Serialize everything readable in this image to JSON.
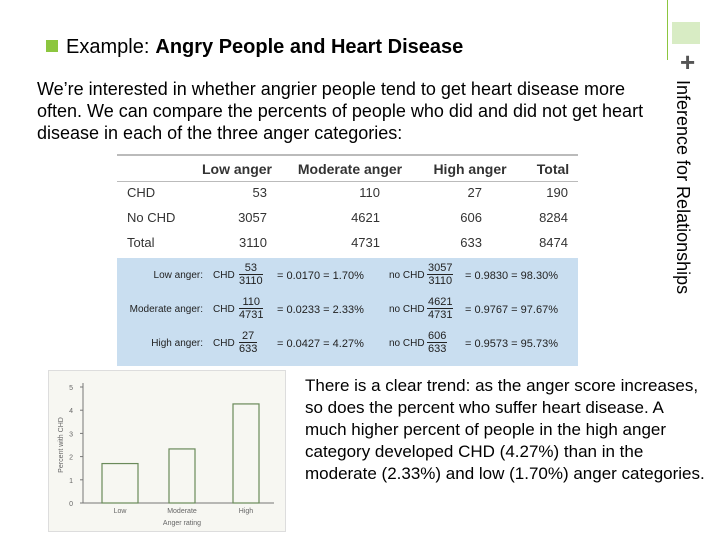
{
  "header": {
    "prefix": "Example:",
    "title": "Angry People and Heart Disease"
  },
  "corner": "+",
  "side_title": "Inference for Relationships",
  "intro": "We’re interested in whether angrier people tend to get heart disease more often. We can compare the percents of people who did and did not get heart disease in each of the three anger categories:",
  "table": {
    "columns": [
      "Low anger",
      "Moderate anger",
      "High anger",
      "Total"
    ],
    "rows": [
      {
        "label": "CHD",
        "values": [
          53,
          110,
          27,
          190
        ]
      },
      {
        "label": "No CHD",
        "values": [
          3057,
          4621,
          606,
          8284
        ]
      },
      {
        "label": "Total",
        "values": [
          3110,
          4731,
          633,
          8474
        ]
      }
    ]
  },
  "proportions": [
    {
      "label": "Low anger:",
      "chd": {
        "label": "CHD",
        "num": "53",
        "den": "3110",
        "result": "= 0.0170 = 1.70%"
      },
      "no_chd": {
        "label": "no CHD",
        "num": "3057",
        "den": "3110",
        "result": "= 0.9830 = 98.30%"
      }
    },
    {
      "label": "Moderate anger:",
      "chd": {
        "label": "CHD",
        "num": "110",
        "den": "4731",
        "result": "= 0.0233 = 2.33%"
      },
      "no_chd": {
        "label": "no CHD",
        "num": "4621",
        "den": "4731",
        "result": "= 0.9767 = 97.67%"
      }
    },
    {
      "label": "High anger:",
      "chd": {
        "label": "CHD",
        "num": "27",
        "den": "633",
        "result": "= 0.0427 = 4.27%"
      },
      "no_chd": {
        "label": "no CHD",
        "num": "606",
        "den": "633",
        "result": "= 0.9573 = 95.73%"
      }
    }
  ],
  "figure": {
    "y_label": "Percent with CHD",
    "x_label": "Anger rating",
    "categories": [
      "Low",
      "Moderate",
      "High"
    ],
    "values": [
      1.7,
      2.33,
      4.27
    ],
    "ylim": [
      0,
      5
    ],
    "yticks": [
      0,
      1,
      2,
      3,
      4,
      5
    ]
  },
  "conclusion": "There is a clear trend: as the anger score increases, so does the percent who suffer heart disease. A much higher percent of people in the high anger category developed CHD (4.27%) than in the moderate (2.33%) and low (1.70%) anger categories."
}
